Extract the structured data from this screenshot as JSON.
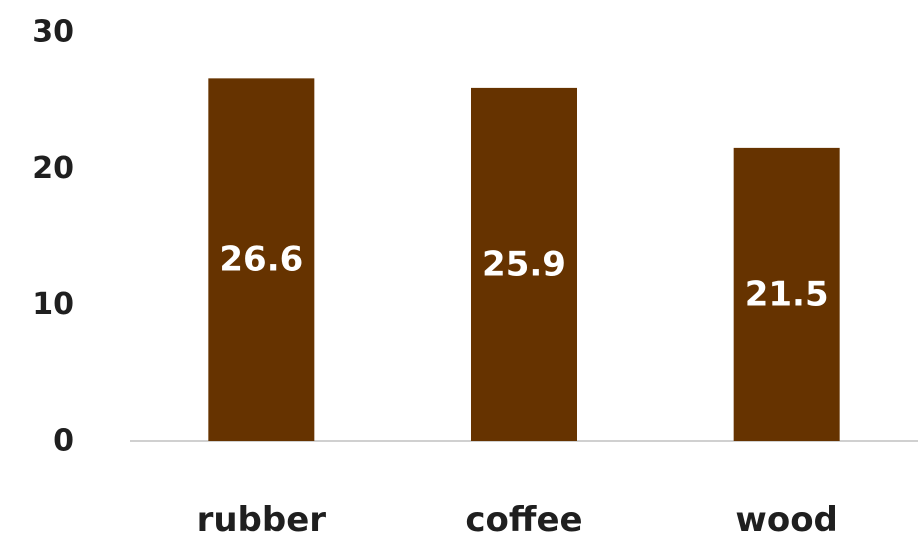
{
  "chart_data": {
    "type": "bar",
    "title": "",
    "xlabel": "",
    "ylabel": "",
    "categories": [
      "rubber",
      "coffee",
      "wood"
    ],
    "values": [
      26.6,
      25.9,
      21.5
    ],
    "data_labels": [
      "26.6",
      "25.9",
      "21.5"
    ],
    "ylim": [
      0,
      30
    ],
    "yticks": [
      0,
      10,
      20,
      30
    ],
    "ytick_labels": [
      "0",
      "10",
      "20",
      "30"
    ],
    "grid": false,
    "legend": "none",
    "bar_color": "#663300",
    "data_label_color": "#ffffff",
    "axis_color": "#d0d0d0"
  }
}
